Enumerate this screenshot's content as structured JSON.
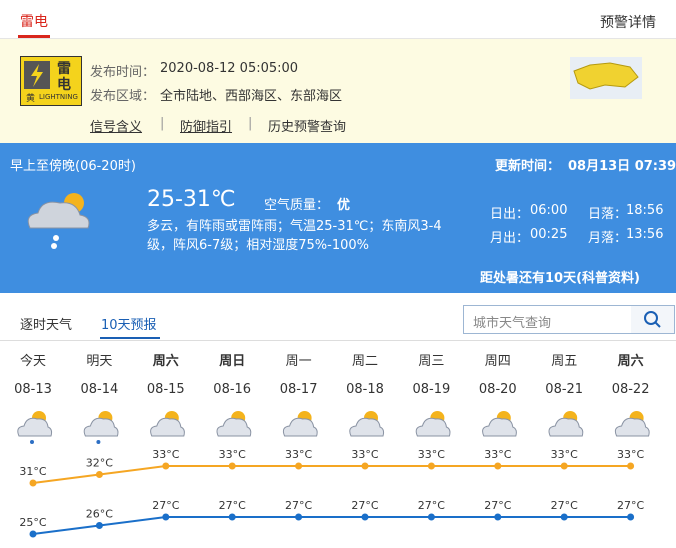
{
  "header": {
    "tab": "雷电",
    "link": "预警详情"
  },
  "warning": {
    "icon_top": "雷",
    "icon_bottom": "电",
    "icon_level": "黄",
    "icon_en": "LIGHTNING",
    "time_label": "发布时间：",
    "time": "2020-08-12 05:05:00",
    "area_label": "发布区域：",
    "area": "全市陆地、西部海区、东部海区",
    "links": [
      "信号含义",
      "防御指引",
      "历史预警查询"
    ]
  },
  "today": {
    "period": "早上至傍晚(06-20时)",
    "updated_label": "更新时间：",
    "updated": "08月13日 07:39",
    "temp": "25-31℃",
    "aqi_label": "空气质量：",
    "aqi": "优",
    "desc": "多云，有阵雨或雷阵雨；气温25-31℃；东南风3-4级，阵风6-7级；相对湿度75%-100%",
    "sunrise_label": "日出：",
    "sunrise": "06:00",
    "sunset_label": "日落：",
    "sunset": "18:56",
    "moonrise_label": "月出：",
    "moonrise": "00:25",
    "moonset_label": "月落：",
    "moonset": "13:56",
    "countdown": "距处暑还有10天(科普资料)"
  },
  "tabs": [
    "逐时天气",
    "10天预报"
  ],
  "search_placeholder": "城市天气查询",
  "forecast": {
    "days": [
      "今天",
      "明天",
      "周六",
      "周日",
      "周一",
      "周二",
      "周三",
      "周四",
      "周五",
      "周六"
    ],
    "dates": [
      "08-13",
      "08-14",
      "08-15",
      "08-16",
      "08-17",
      "08-18",
      "08-19",
      "08-20",
      "08-21",
      "08-22"
    ],
    "high": {
      "color": "#f5a623",
      "values": [
        31,
        32,
        33,
        33,
        33,
        33,
        33,
        33,
        33,
        33
      ],
      "value_labels": [
        "31°C",
        "32°C",
        "33°C",
        "33°C",
        "33°C",
        "33°C",
        "33°C",
        "33°C",
        "33°C",
        "33°C"
      ]
    },
    "low": {
      "color": "#1a6fc9",
      "values": [
        25,
        26,
        27,
        27,
        27,
        27,
        27,
        27,
        27,
        27
      ],
      "value_labels": [
        "25°C",
        "26°C",
        "27°C",
        "27°C",
        "27°C",
        "27°C",
        "27°C",
        "27°C",
        "27°C",
        "27°C"
      ]
    }
  }
}
